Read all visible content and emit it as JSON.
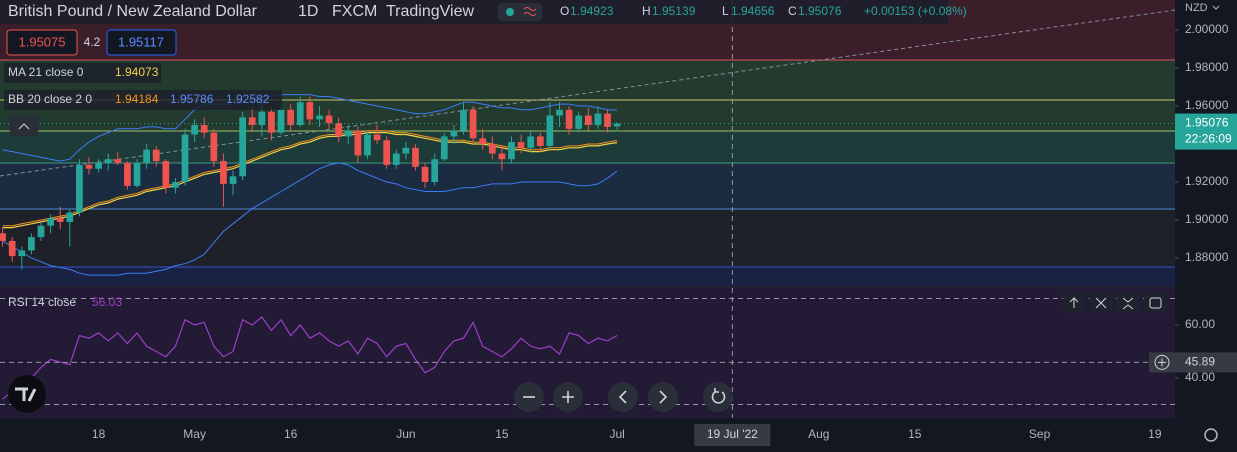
{
  "chart_data": {
    "type": "candlestick",
    "title": "British Pound / New Zealand Dollar",
    "interval": "1D",
    "source": "FXCM",
    "brand": "TradingView",
    "currency": "NZD",
    "up_color": "#26a69a",
    "down_color": "#ef5350",
    "open": [
      1.893,
      1.889,
      1.881,
      1.884,
      1.891,
      1.897,
      1.901,
      1.899,
      1.904,
      1.929,
      1.927,
      1.93,
      1.932,
      1.93,
      1.918,
      1.93,
      1.937,
      1.931,
      1.917,
      1.92,
      1.945,
      1.95,
      1.946,
      1.931,
      1.919,
      1.923,
      1.954,
      1.95,
      1.957,
      1.946,
      1.958,
      1.95,
      1.962,
      1.953,
      1.955,
      1.951,
      1.944,
      1.947,
      1.934,
      1.945,
      1.942,
      1.929,
      1.935,
      1.938,
      1.928,
      1.92,
      1.932,
      1.944,
      1.947,
      1.958,
      1.943,
      1.94,
      1.935,
      1.932,
      1.941,
      1.938,
      1.944,
      1.939,
      1.955,
      1.958,
      1.948,
      1.955,
      1.95,
      1.956,
      1.94923
    ],
    "high": [
      1.896,
      1.891,
      1.886,
      1.893,
      1.899,
      1.903,
      1.907,
      1.906,
      1.932,
      1.933,
      1.932,
      1.935,
      1.936,
      1.931,
      1.932,
      1.94,
      1.939,
      1.932,
      1.922,
      1.948,
      1.953,
      1.954,
      1.948,
      1.935,
      1.926,
      1.957,
      1.96,
      1.962,
      1.96,
      1.96,
      1.961,
      1.965,
      1.965,
      1.96,
      1.958,
      1.954,
      1.95,
      1.949,
      1.947,
      1.95,
      1.944,
      1.937,
      1.941,
      1.94,
      1.93,
      1.935,
      1.946,
      1.95,
      1.962,
      1.96,
      1.948,
      1.944,
      1.939,
      1.944,
      1.945,
      1.947,
      1.946,
      1.962,
      1.962,
      1.96,
      1.957,
      1.959,
      1.96,
      1.958,
      1.95139
    ],
    "low": [
      1.886,
      1.878,
      1.874,
      1.882,
      1.889,
      1.893,
      1.895,
      1.886,
      1.902,
      1.924,
      1.925,
      1.926,
      1.929,
      1.916,
      1.917,
      1.927,
      1.928,
      1.914,
      1.914,
      1.918,
      1.941,
      1.943,
      1.928,
      1.907,
      1.913,
      1.921,
      1.947,
      1.944,
      1.942,
      1.945,
      1.947,
      1.949,
      1.95,
      1.949,
      1.948,
      1.941,
      1.94,
      1.93,
      1.932,
      1.94,
      1.927,
      1.927,
      1.932,
      1.926,
      1.917,
      1.918,
      1.931,
      1.94,
      1.945,
      1.94,
      1.937,
      1.932,
      1.926,
      1.93,
      1.935,
      1.936,
      1.936,
      1.938,
      1.949,
      1.945,
      1.946,
      1.947,
      1.948,
      1.946,
      1.94656
    ],
    "close": [
      1.889,
      1.881,
      1.884,
      1.891,
      1.897,
      1.901,
      1.899,
      1.904,
      1.929,
      1.927,
      1.93,
      1.932,
      1.93,
      1.918,
      1.93,
      1.937,
      1.931,
      1.917,
      1.92,
      1.945,
      1.95,
      1.946,
      1.931,
      1.919,
      1.923,
      1.954,
      1.95,
      1.957,
      1.946,
      1.958,
      1.95,
      1.962,
      1.953,
      1.955,
      1.951,
      1.944,
      1.947,
      1.934,
      1.945,
      1.942,
      1.929,
      1.935,
      1.938,
      1.928,
      1.92,
      1.932,
      1.944,
      1.947,
      1.958,
      1.943,
      1.94,
      1.935,
      1.932,
      1.941,
      1.938,
      1.944,
      1.939,
      1.955,
      1.958,
      1.948,
      1.955,
      1.95,
      1.956,
      1.949,
      1.95076
    ],
    "overlays": [
      {
        "name": "MA 21 close 0",
        "color": "#f0d44a",
        "values": [
          1.896,
          1.896,
          1.897,
          1.898,
          1.899,
          1.9,
          1.901,
          1.902,
          1.904,
          1.906,
          1.908,
          1.909,
          1.911,
          1.912,
          1.913,
          1.915,
          1.916,
          1.917,
          1.918,
          1.92,
          1.922,
          1.924,
          1.925,
          1.926,
          1.927,
          1.929,
          1.931,
          1.933,
          1.935,
          1.937,
          1.938,
          1.94,
          1.941,
          1.943,
          1.944,
          1.944,
          1.945,
          1.945,
          1.946,
          1.946,
          1.946,
          1.945,
          1.945,
          1.944,
          1.943,
          1.942,
          1.941,
          1.941,
          1.941,
          1.94,
          1.94,
          1.939,
          1.938,
          1.937,
          1.937,
          1.936,
          1.936,
          1.937,
          1.937,
          1.938,
          1.938,
          1.939,
          1.939,
          1.94,
          1.94073
        ]
      },
      {
        "name": "BB 20 close 2 0",
        "series": [
          {
            "color": "#f7931a",
            "values": [
              1.897,
              1.897,
              1.898,
              1.899,
              1.9,
              1.901,
              1.902,
              1.903,
              1.905,
              1.907,
              1.909,
              1.91,
              1.912,
              1.913,
              1.914,
              1.916,
              1.917,
              1.918,
              1.919,
              1.921,
              1.923,
              1.925,
              1.926,
              1.927,
              1.928,
              1.93,
              1.932,
              1.934,
              1.936,
              1.938,
              1.939,
              1.941,
              1.942,
              1.944,
              1.945,
              1.945,
              1.946,
              1.946,
              1.947,
              1.947,
              1.947,
              1.946,
              1.946,
              1.945,
              1.944,
              1.943,
              1.942,
              1.942,
              1.942,
              1.941,
              1.941,
              1.94,
              1.939,
              1.938,
              1.938,
              1.937,
              1.937,
              1.938,
              1.938,
              1.939,
              1.939,
              1.94,
              1.94,
              1.941,
              1.94184
            ]
          },
          {
            "color": "#3d7bf7",
            "values": [
              1.937,
              1.936,
              1.935,
              1.934,
              1.933,
              1.932,
              1.931,
              1.932,
              1.937,
              1.941,
              1.944,
              1.946,
              1.948,
              1.948,
              1.948,
              1.949,
              1.949,
              1.948,
              1.948,
              1.953,
              1.958,
              1.961,
              1.961,
              1.961,
              1.961,
              1.962,
              1.964,
              1.965,
              1.965,
              1.966,
              1.966,
              1.966,
              1.966,
              1.965,
              1.965,
              1.964,
              1.963,
              1.962,
              1.961,
              1.96,
              1.959,
              1.958,
              1.957,
              1.956,
              1.956,
              1.957,
              1.958,
              1.96,
              1.962,
              1.962,
              1.961,
              1.96,
              1.959,
              1.959,
              1.958,
              1.958,
              1.959,
              1.96,
              1.961,
              1.961,
              1.96,
              1.96,
              1.959,
              1.958,
              1.95786
            ]
          },
          {
            "color": "#3d7bf7",
            "values": [
              1.889,
              1.886,
              1.883,
              1.88,
              1.878,
              1.876,
              1.875,
              1.874,
              1.872,
              1.871,
              1.871,
              1.871,
              1.871,
              1.872,
              1.872,
              1.872,
              1.873,
              1.874,
              1.876,
              1.877,
              1.879,
              1.882,
              1.888,
              1.894,
              1.898,
              1.902,
              1.906,
              1.909,
              1.912,
              1.915,
              1.918,
              1.921,
              1.924,
              1.927,
              1.929,
              1.93,
              1.929,
              1.926,
              1.924,
              1.922,
              1.92,
              1.919,
              1.917,
              1.916,
              1.915,
              1.915,
              1.915,
              1.916,
              1.917,
              1.917,
              1.918,
              1.919,
              1.919,
              1.919,
              1.92,
              1.92,
              1.92,
              1.92,
              1.92,
              1.919,
              1.918,
              1.918,
              1.919,
              1.922,
              1.92582
            ]
          }
        ]
      }
    ],
    "xlim": [
      -0.27,
      122.1
    ],
    "xticks": [
      {
        "value": 10,
        "label": "18"
      },
      {
        "value": 20,
        "label": "May"
      },
      {
        "value": 30,
        "label": "16"
      },
      {
        "value": 42,
        "label": "Jun"
      },
      {
        "value": 52,
        "label": "15"
      },
      {
        "value": 64,
        "label": "Jul"
      },
      {
        "value": 85,
        "label": "Aug"
      },
      {
        "value": 95,
        "label": "15"
      },
      {
        "value": 108,
        "label": "Sep"
      },
      {
        "value": 120,
        "label": "19"
      }
    ],
    "ylim": [
      1.8658,
      2.0158
    ],
    "yticks": [
      {
        "value": 2.0,
        "label": "2.00000"
      },
      {
        "value": 1.98,
        "label": "1.98000"
      },
      {
        "value": 1.96,
        "label": "1.96000"
      },
      {
        "value": 1.92,
        "label": "1.92000"
      },
      {
        "value": 1.9,
        "label": "1.90000"
      },
      {
        "value": 1.88,
        "label": "1.88000"
      }
    ],
    "rsi": {
      "name": "RSI 14 close",
      "color": "#9c3fc9",
      "values": [
        32,
        35,
        34,
        40,
        44,
        47,
        46,
        45,
        56,
        55,
        57,
        54,
        57,
        53,
        57,
        52,
        50,
        48,
        52,
        62,
        60,
        61,
        52,
        48,
        50,
        62,
        60,
        63,
        58,
        62,
        56,
        60,
        55,
        57,
        54,
        52,
        54,
        49,
        55,
        53,
        48,
        52,
        53,
        47,
        42,
        44,
        50,
        54,
        55,
        61,
        52,
        50,
        48,
        51,
        55,
        52,
        51,
        52,
        49,
        57,
        56,
        53,
        55,
        54,
        56.03
      ],
      "ylim": [
        24.9,
        73.2
      ],
      "yticks": [
        {
          "value": 60,
          "label": "60.00"
        },
        {
          "value": 40,
          "label": "40.00"
        }
      ],
      "band_levels": [
        70,
        30
      ]
    },
    "crosshair": {
      "x": {
        "value": 76,
        "label": "19 Jul '22"
      },
      "y": 45.89
    }
  },
  "ui": {
    "ohlc_letters": [
      "O",
      "H",
      "L",
      "C"
    ],
    "change": "+0.00153 (+0.08%)",
    "sell": 1.95075,
    "spread": 4.2,
    "buy": 1.95117,
    "countdown": "22:26:09"
  }
}
